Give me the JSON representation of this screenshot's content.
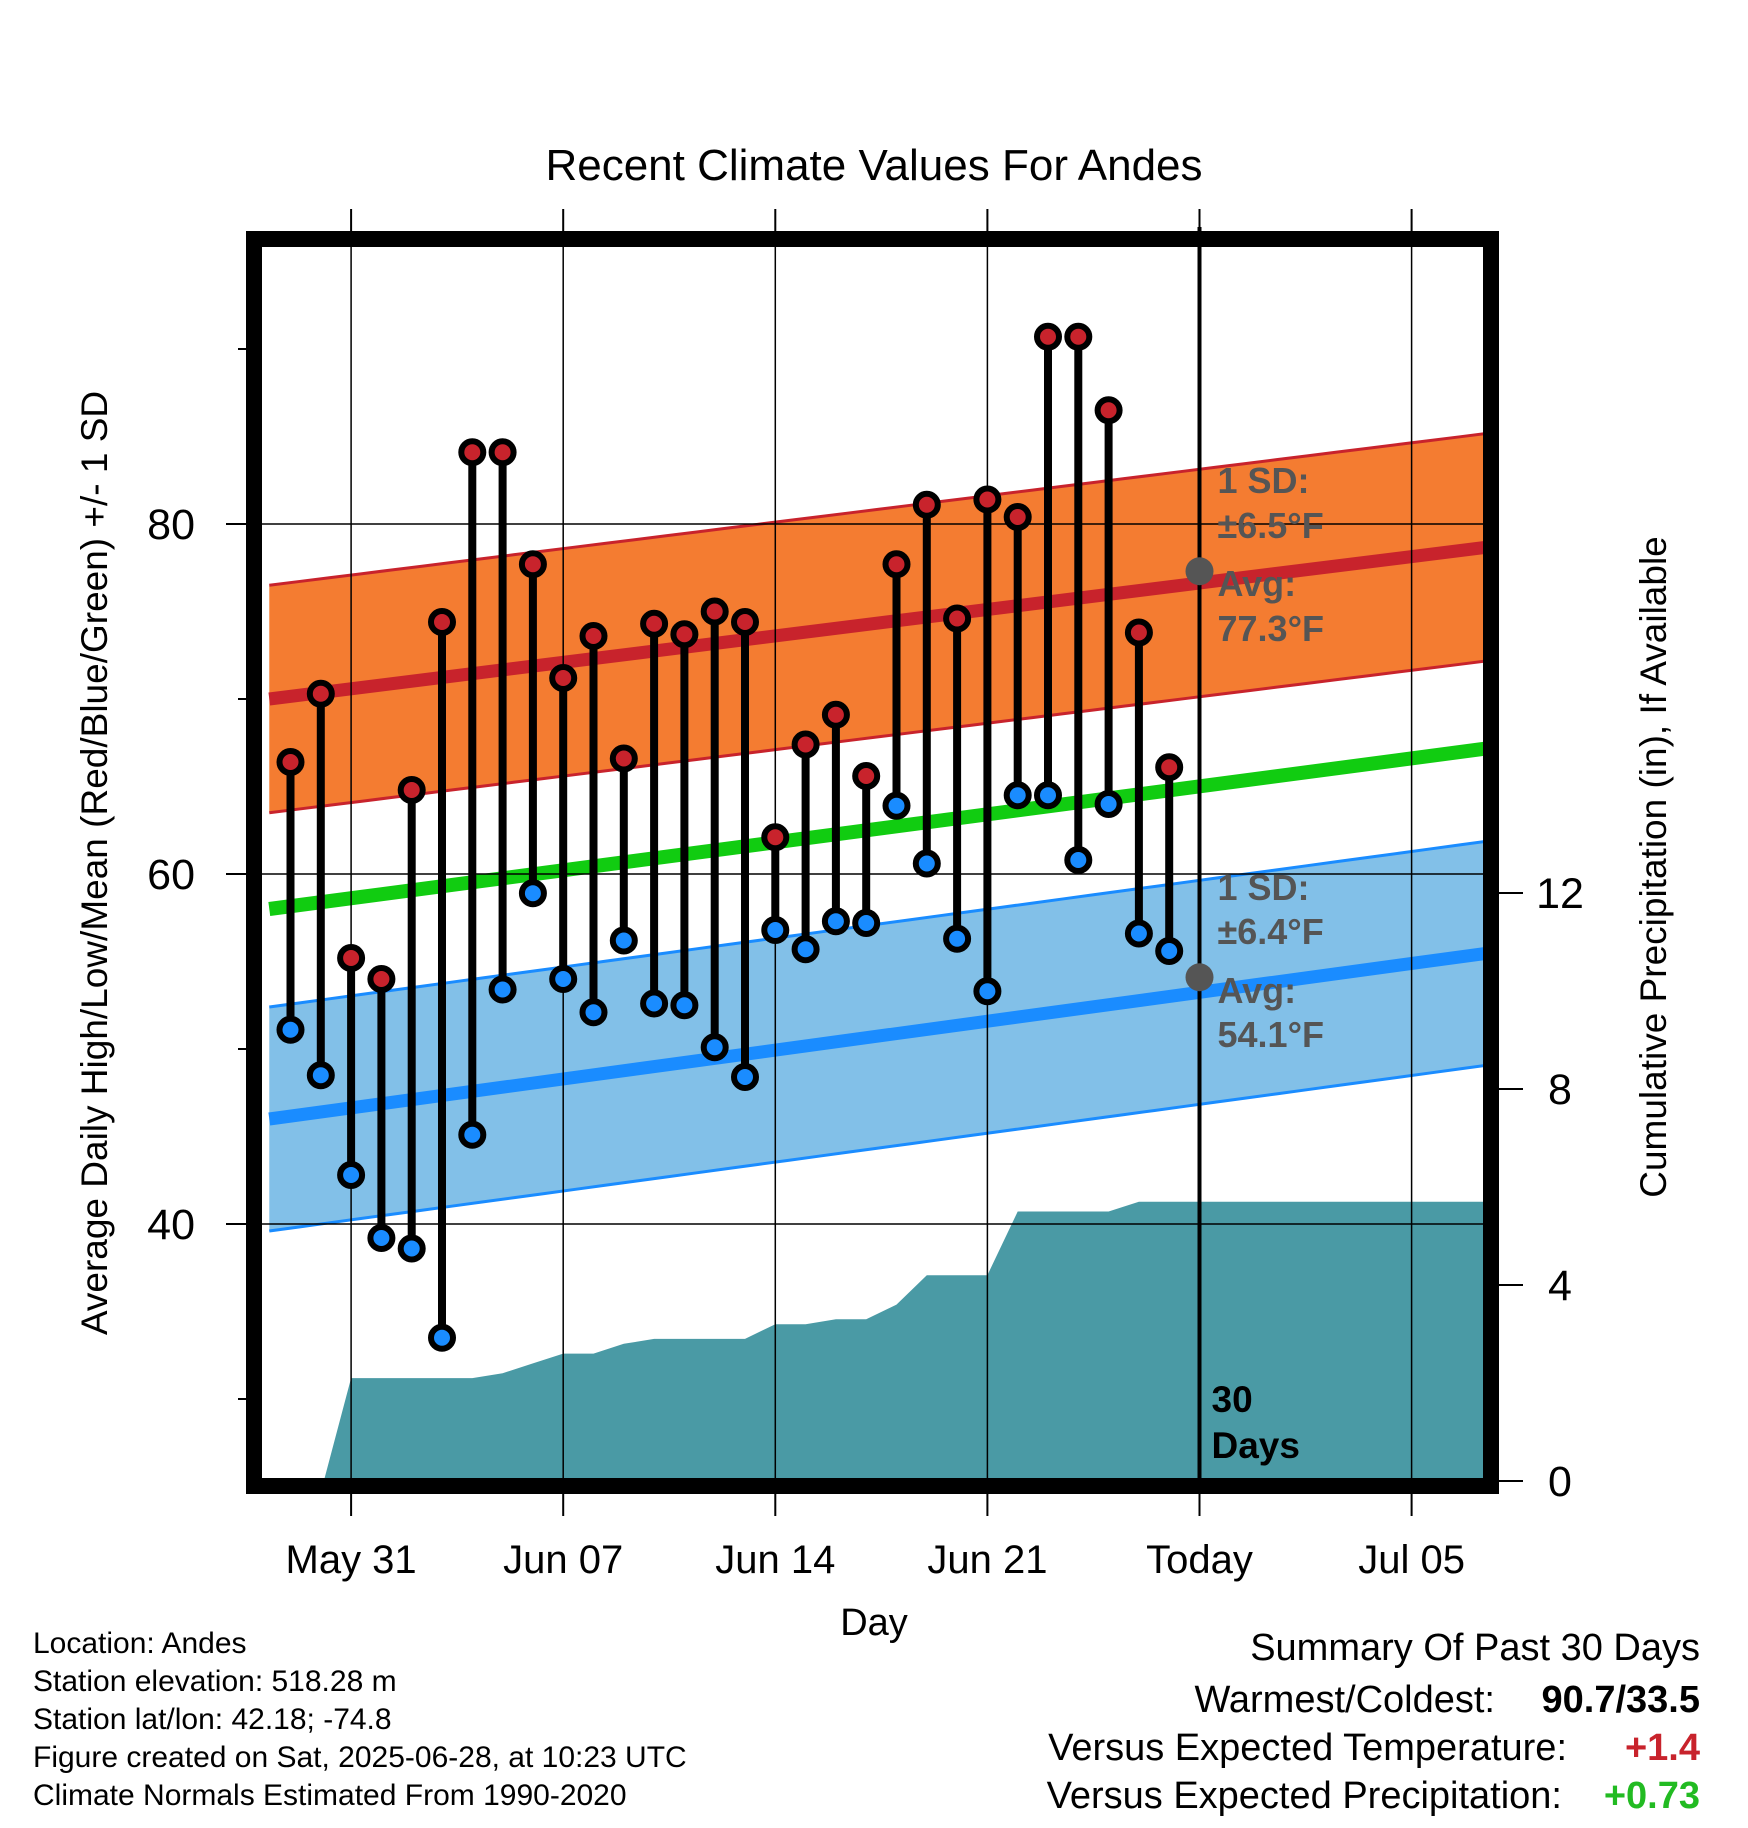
{
  "chart_data": {
    "type": "line",
    "title": "Recent Climate Values For Andes",
    "xlabel": "Day",
    "ylabel": "Average Daily High/Low/Mean (Red/Blue/Green) +/- 1 SD",
    "y2label": "Cumulative Precipitation (in), If Available",
    "x_tick_labels": [
      "May 31",
      "Jun 07",
      "Jun 14",
      "Jun 21",
      "Today",
      "Jul 05"
    ],
    "x_tick_days": [
      2,
      9,
      16,
      23,
      30,
      37
    ],
    "xlim": [
      -0.7,
      39.6
    ],
    "ylim": [
      27,
      97
    ],
    "y_ticks": [
      40,
      60,
      80
    ],
    "y2lim": [
      0,
      25
    ],
    "y2_ticks": [
      0,
      4,
      8,
      12
    ],
    "grid": true,
    "days": [
      0,
      1,
      2,
      3,
      4,
      5,
      6,
      7,
      8,
      9,
      10,
      11,
      12,
      13,
      14,
      15,
      16,
      17,
      18,
      19,
      20,
      21,
      22,
      23,
      24,
      25,
      26,
      27,
      28,
      29
    ],
    "highs": [
      66.4,
      70.3,
      55.2,
      54.0,
      64.8,
      74.4,
      84.1,
      84.1,
      77.7,
      71.2,
      73.6,
      66.6,
      74.3,
      73.7,
      75.0,
      74.4,
      62.1,
      67.4,
      69.1,
      65.6,
      77.7,
      81.1,
      74.6,
      81.4,
      80.4,
      90.7,
      90.7,
      86.5,
      73.8,
      66.1
    ],
    "lows": [
      51.1,
      48.5,
      42.8,
      39.2,
      38.6,
      33.5,
      45.1,
      53.4,
      58.9,
      54.0,
      52.1,
      56.2,
      52.6,
      52.5,
      50.1,
      48.4,
      56.8,
      55.7,
      57.3,
      57.2,
      63.9,
      60.6,
      56.3,
      53.3,
      64.5,
      64.5,
      60.8,
      64.0,
      56.6,
      55.6
    ],
    "avg_high": {
      "start": 70.0,
      "end": 78.7,
      "today": 77.3
    },
    "avg_low": {
      "start": 46.0,
      "end": 55.5,
      "today": 54.1
    },
    "mean": {
      "start": 58.0,
      "end": 67.2
    },
    "high_sd": 6.5,
    "low_sd": 6.4,
    "precip_x": [
      1.1,
      2.0,
      6.0,
      7.0,
      8.0,
      9.0,
      10.0,
      11.0,
      12.0,
      13.0,
      14.0,
      15.0,
      16.0,
      17.0,
      18.0,
      19.0,
      20.0,
      21.0,
      22.0,
      23.0,
      24.0,
      25.0,
      26.0,
      27.0,
      28.0,
      30.0,
      39.6
    ],
    "precip_cum": [
      0.0,
      2.1,
      2.1,
      2.2,
      2.4,
      2.6,
      2.6,
      2.8,
      2.9,
      2.9,
      2.9,
      2.9,
      3.2,
      3.2,
      3.3,
      3.3,
      3.6,
      4.2,
      4.2,
      4.2,
      5.5,
      5.5,
      5.5,
      5.5,
      5.7,
      5.7,
      5.7
    ],
    "today_label": "30 Days",
    "annotations": {
      "high_sd_label": "1 SD:",
      "high_sd_value": "±6.5°F",
      "high_avg_label": "Avg:",
      "high_avg_value": "77.3°F",
      "low_sd_label": "1 SD:",
      "low_sd_value": "±6.4°F",
      "low_avg_label": "Avg:",
      "low_avg_value": "54.1°F"
    },
    "colors": {
      "high": "#c8232c",
      "high_band": "#f47c31",
      "low": "#1a8cff",
      "low_band": "#82c0e8",
      "mean": "#11cc11",
      "precip": "#4a9aa5",
      "annotation": "#555555"
    }
  },
  "info": {
    "location": "Location: Andes",
    "elevation": "Station elevation: 518.28 m",
    "latlon": "Station lat/lon: 42.18; -74.8",
    "created": "Figure created on Sat, 2025-06-28, at 10:23 UTC",
    "normals": "Climate Normals Estimated From 1990-2020"
  },
  "summary": {
    "title": "Summary Of Past 30 Days",
    "warm_cold_label": "Warmest/Coldest:",
    "warm_cold_value": "90.7/33.5",
    "temp_label": "Versus Expected Temperature:",
    "temp_value": "+1.4",
    "precip_label": "Versus Expected Precipitation:",
    "precip_value": "+0.73",
    "temp_color": "#c8232c",
    "precip_color": "#22bb22"
  }
}
